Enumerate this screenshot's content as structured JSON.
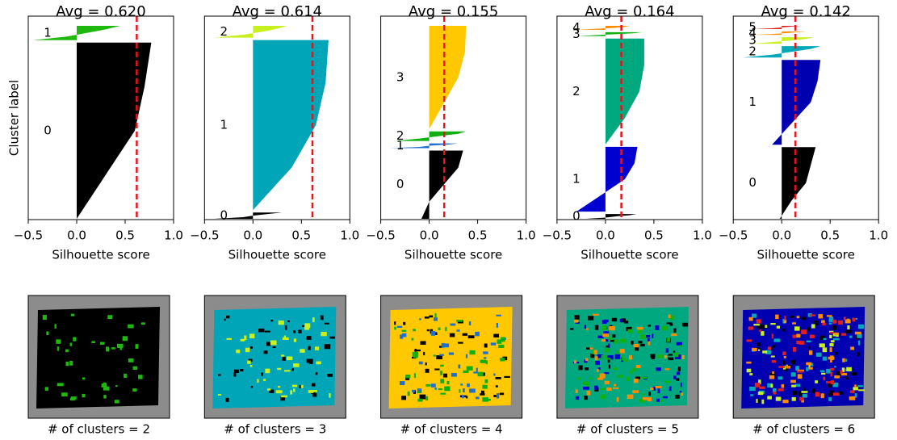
{
  "chart_data": [
    {
      "type": "silhouette",
      "title": "Avg = 0.620",
      "x_label": "Silhouette score",
      "y_label": "Cluster label",
      "avg": 0.62,
      "xlim": [
        -0.5,
        1
      ],
      "xticks": [
        {
          "value": -0.5,
          "label": "−0.5"
        },
        {
          "value": 0,
          "label": "0.0"
        },
        0.5,
        {
          "value": 1,
          "label": "1.0"
        }
      ],
      "clusters": [
        {
          "label": "0",
          "color": "#000000",
          "size": 222,
          "values": [
            0,
            0.3,
            0.6,
            0.7,
            0.77
          ]
        },
        {
          "label": "1",
          "color": "#1fb80f",
          "size": 18,
          "values": [
            -0.45,
            -0.1,
            0.1,
            0.3,
            0.45
          ]
        }
      ]
    },
    {
      "type": "silhouette",
      "title": "Avg = 0.614",
      "x_label": "Silhouette score",
      "avg": 0.614,
      "xlim": [
        -0.5,
        1
      ],
      "xticks": [
        {
          "value": -0.5,
          "label": "−0.5"
        },
        {
          "value": 0,
          "label": "0.0"
        },
        0.5,
        {
          "value": 1,
          "label": "1.0"
        }
      ],
      "clusters": [
        {
          "label": "0",
          "color": "#000000",
          "size": 8,
          "values": [
            -0.4,
            -0.1,
            0,
            0.15,
            0.3
          ]
        },
        {
          "label": "1",
          "color": "#00a6b8",
          "size": 216,
          "values": [
            0,
            0.4,
            0.65,
            0.75,
            0.78
          ]
        },
        {
          "label": "2",
          "color": "#c8f01e",
          "size": 15,
          "values": [
            -0.4,
            -0.1,
            0.1,
            0.25,
            0.35
          ]
        }
      ]
    },
    {
      "type": "silhouette",
      "title": "Avg = 0.155",
      "x_label": "Silhouette score",
      "avg": 0.155,
      "xlim": [
        -0.5,
        1
      ],
      "xticks": [
        {
          "value": -0.5,
          "label": "−0.5"
        },
        {
          "value": 0,
          "label": "0.0"
        },
        0.5,
        {
          "value": 1,
          "label": "1.0"
        }
      ],
      "clusters": [
        {
          "label": "0",
          "color": "#000000",
          "size": 86,
          "values": [
            -0.08,
            0,
            0.15,
            0.3,
            0.35
          ]
        },
        {
          "label": "1",
          "color": "#1f6fd0",
          "size": 6,
          "values": [
            -0.4,
            -0.1,
            0,
            0.2,
            0.3
          ]
        },
        {
          "label": "2",
          "color": "#10b010",
          "size": 12,
          "values": [
            -0.35,
            -0.1,
            0.1,
            0.3,
            0.38
          ]
        },
        {
          "label": "3",
          "color": "#ffc800",
          "size": 130,
          "values": [
            0,
            0.15,
            0.3,
            0.37,
            0.38
          ]
        }
      ]
    },
    {
      "type": "silhouette",
      "title": "Avg = 0.164",
      "x_label": "Silhouette score",
      "avg": 0.164,
      "xlim": [
        -0.5,
        1
      ],
      "xticks": [
        {
          "value": -0.5,
          "label": "−0.5"
        },
        {
          "value": 0,
          "label": "0.0"
        },
        0.5,
        {
          "value": 1,
          "label": "1.0"
        }
      ],
      "clusters": [
        {
          "label": "0",
          "color": "#000000",
          "size": 6,
          "values": [
            -0.2,
            0,
            0.1,
            0.25,
            0.32
          ]
        },
        {
          "label": "1",
          "color": "#0000d0",
          "size": 82,
          "values": [
            -0.3,
            -0.05,
            0.2,
            0.3,
            0.33
          ]
        },
        {
          "label": "2",
          "color": "#00a880",
          "size": 134,
          "values": [
            0,
            0.2,
            0.35,
            0.4,
            0.4
          ]
        },
        {
          "label": "3",
          "color": "#10b010",
          "size": 5,
          "values": [
            -0.3,
            -0.1,
            0.1,
            0.3,
            0.38
          ]
        },
        {
          "label": "4",
          "color": "#ff8c00",
          "size": 5,
          "values": [
            -0.3,
            -0.1,
            0.1,
            0.2,
            0.25
          ]
        }
      ]
    },
    {
      "type": "silhouette",
      "title": "Avg = 0.142",
      "x_label": "Silhouette score",
      "avg": 0.142,
      "xlim": [
        -0.5,
        1
      ],
      "xticks": [
        {
          "value": -0.5,
          "label": "−0.5"
        },
        {
          "value": 0,
          "label": "0.0"
        },
        0.5,
        {
          "value": 1,
          "label": "1.0"
        }
      ],
      "clusters": [
        {
          "label": "0",
          "color": "#000000",
          "size": 88,
          "values": [
            -0.02,
            0.1,
            0.25,
            0.3,
            0.35
          ]
        },
        {
          "label": "1",
          "color": "#0000b0",
          "size": 104,
          "values": [
            -0.1,
            0.1,
            0.3,
            0.37,
            0.4
          ]
        },
        {
          "label": "2",
          "color": "#00a8b8",
          "size": 14,
          "values": [
            -0.4,
            -0.1,
            0.1,
            0.3,
            0.4
          ]
        },
        {
          "label": "3",
          "color": "#c8f01e",
          "size": 8,
          "values": [
            -0.3,
            -0.1,
            0.1,
            0.25,
            0.33
          ]
        },
        {
          "label": "4",
          "color": "#ff8c00",
          "size": 4,
          "values": [
            -0.3,
            -0.1,
            0.05,
            0.15,
            0.25
          ]
        },
        {
          "label": "5",
          "color": "#e02020",
          "size": 4,
          "values": [
            -0.3,
            -0.1,
            0,
            0.1,
            0.2
          ]
        }
      ]
    }
  ],
  "images": [
    {
      "caption": "# of clusters = 2"
    },
    {
      "caption": "# of clusters = 3"
    },
    {
      "caption": "# of clusters = 4"
    },
    {
      "caption": "# of clusters = 5"
    },
    {
      "caption": "# of clusters = 6"
    }
  ]
}
